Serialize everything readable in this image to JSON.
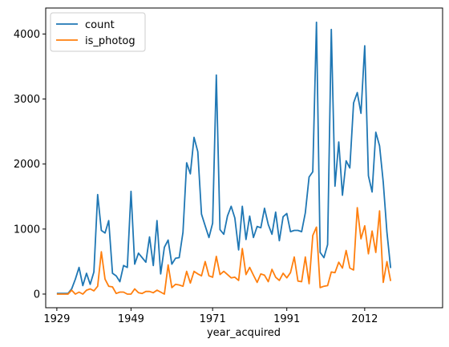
{
  "chart_data": {
    "type": "line",
    "xlabel": "year_acquired",
    "ylabel": "",
    "title": "",
    "xlim": [
      1926,
      2033
    ],
    "ylim": [
      -210,
      4400
    ],
    "xticks": [
      1929,
      1949,
      1971,
      1991,
      2012
    ],
    "yticks": [
      0,
      1000,
      2000,
      3000,
      4000
    ],
    "grid": false,
    "legend_position": "top-left",
    "series": [
      {
        "name": "count",
        "color": "#1f77b4",
        "x": [
          1929,
          1930,
          1931,
          1932,
          1933,
          1934,
          1935,
          1936,
          1937,
          1938,
          1939,
          1940,
          1941,
          1942,
          1943,
          1944,
          1945,
          1946,
          1947,
          1948,
          1949,
          1950,
          1951,
          1952,
          1953,
          1954,
          1955,
          1956,
          1957,
          1958,
          1959,
          1960,
          1961,
          1962,
          1963,
          1964,
          1965,
          1966,
          1967,
          1968,
          1969,
          1970,
          1971,
          1972,
          1973,
          1974,
          1975,
          1976,
          1977,
          1978,
          1979,
          1980,
          1981,
          1982,
          1983,
          1984,
          1985,
          1986,
          1987,
          1988,
          1989,
          1990,
          1991,
          1992,
          1993,
          1994,
          1995,
          1996,
          1997,
          1998,
          1999,
          2000,
          2001,
          2002,
          2003,
          2004,
          2005,
          2006,
          2007,
          2008,
          2009,
          2010,
          2011,
          2012,
          2013,
          2014,
          2015,
          2016,
          2017,
          2018,
          2019,
          2020,
          2021,
          2022
        ],
        "values": [
          10,
          10,
          10,
          10,
          80,
          230,
          410,
          130,
          320,
          150,
          340,
          1530,
          980,
          940,
          1130,
          320,
          280,
          190,
          440,
          410,
          1580,
          460,
          630,
          560,
          490,
          880,
          440,
          1130,
          310,
          720,
          830,
          460,
          550,
          560,
          950,
          2020,
          1850,
          2410,
          2190,
          1230,
          1050,
          870,
          1090,
          3370,
          990,
          920,
          1200,
          1350,
          1170,
          680,
          1350,
          840,
          1200,
          870,
          1040,
          1020,
          1320,
          1070,
          920,
          1260,
          820,
          1190,
          1240,
          960,
          980,
          980,
          960,
          1250,
          1800,
          1880,
          4180,
          640,
          560,
          760,
          4070,
          1660,
          2340,
          1520,
          2050,
          1940,
          2940,
          3100,
          2780,
          3820,
          1820,
          1570,
          2490,
          2280,
          1720,
          950,
          400,
          null,
          null,
          null
        ],
        "note_x": "years from 1929 sequentially"
      },
      {
        "name": "is_photog",
        "color": "#ff7f0e",
        "x": [
          1929,
          1930,
          1931,
          1932,
          1933,
          1934,
          1935,
          1936,
          1937,
          1938,
          1939,
          1940,
          1941,
          1942,
          1943,
          1944,
          1945,
          1946,
          1947,
          1948,
          1949,
          1950,
          1951,
          1952,
          1953,
          1954,
          1955,
          1956,
          1957,
          1958,
          1959,
          1960,
          1961,
          1962,
          1963,
          1964,
          1965,
          1966,
          1967,
          1968,
          1969,
          1970,
          1971,
          1972,
          1973,
          1974,
          1975,
          1976,
          1977,
          1978,
          1979,
          1980,
          1981,
          1982,
          1983,
          1984,
          1985,
          1986,
          1987,
          1988,
          1989,
          1990,
          1991,
          1992,
          1993,
          1994,
          1995,
          1996,
          1997,
          1998,
          1999,
          2000,
          2001,
          2002,
          2003,
          2004,
          2005,
          2006,
          2007,
          2008,
          2009,
          2010,
          2011,
          2012,
          2013,
          2014,
          2015,
          2016,
          2017,
          2018,
          2019,
          2020,
          2021,
          2022
        ],
        "values": [
          0,
          0,
          0,
          0,
          60,
          0,
          30,
          0,
          60,
          80,
          50,
          120,
          650,
          230,
          120,
          110,
          10,
          30,
          30,
          0,
          0,
          80,
          20,
          10,
          40,
          40,
          20,
          60,
          30,
          0,
          450,
          100,
          150,
          140,
          120,
          350,
          170,
          350,
          310,
          280,
          500,
          280,
          260,
          580,
          300,
          350,
          300,
          250,
          260,
          210,
          700,
          300,
          410,
          290,
          180,
          310,
          290,
          190,
          380,
          260,
          210,
          320,
          250,
          330,
          570,
          200,
          190,
          570,
          160,
          900,
          1030,
          100,
          120,
          130,
          340,
          330,
          490,
          400,
          670,
          400,
          370,
          1330,
          850,
          1050,
          620,
          970,
          640,
          1280,
          180,
          500,
          200,
          null,
          null,
          null
        ]
      }
    ]
  }
}
